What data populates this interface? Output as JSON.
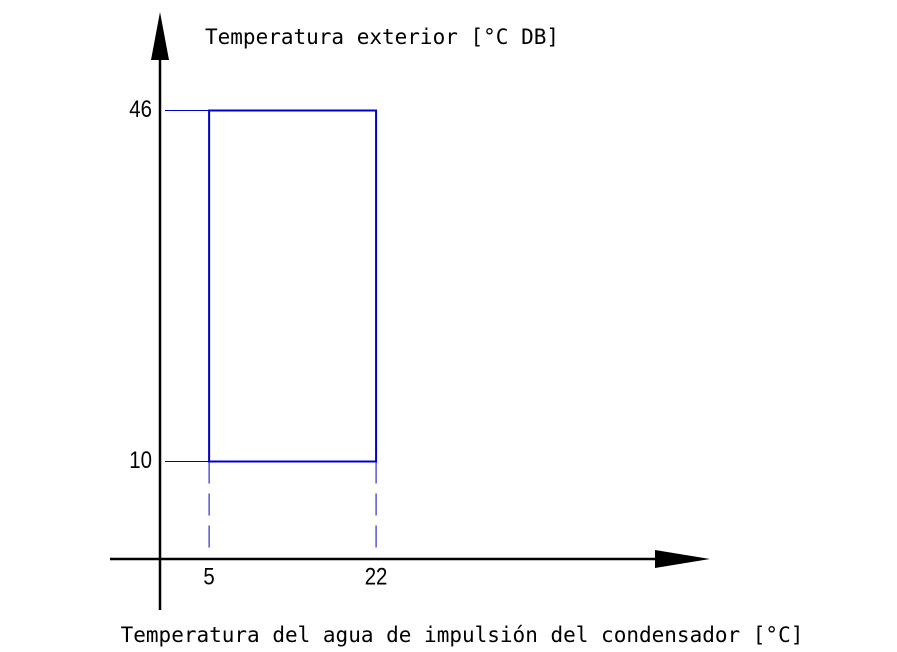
{
  "chart_data": {
    "type": "range",
    "xlabel": "Temperatura del agua de impulsión del condensador [°C]",
    "ylabel": "Temperatura exterior [°C DB]",
    "region": {
      "x": [
        5,
        22
      ],
      "y": [
        10,
        46
      ]
    },
    "color": "#0000cc",
    "xlim": [
      0,
      56
    ],
    "ylim": [
      0,
      56
    ],
    "xticks": [
      5,
      22
    ],
    "yticks": [
      10,
      46
    ]
  }
}
